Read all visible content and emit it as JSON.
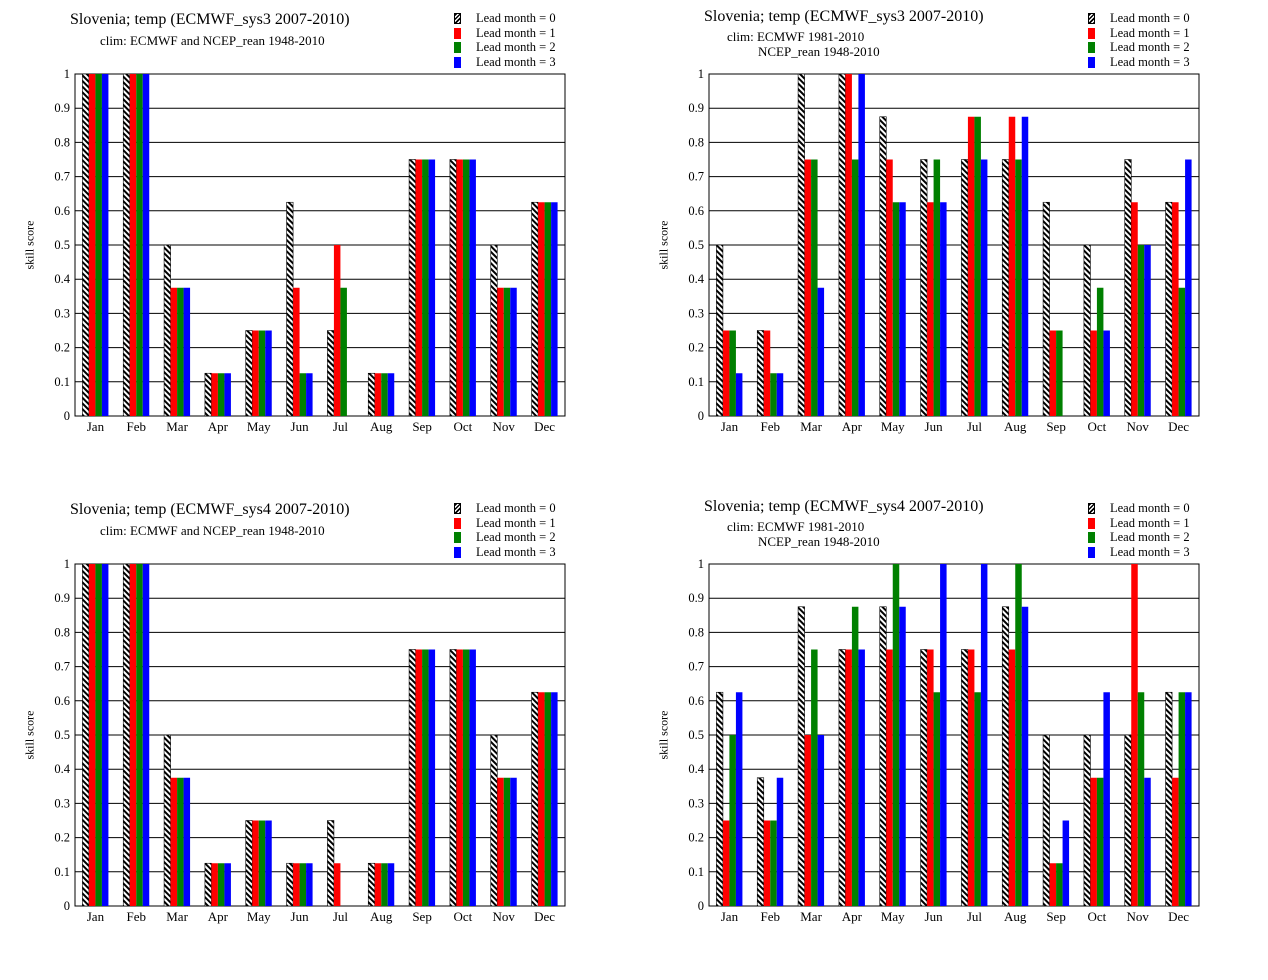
{
  "colors": {
    "lead0": "hatched-black-white",
    "lead1": "#ff0000",
    "lead2": "#008000",
    "lead3": "#0000ff",
    "grid": "#000000"
  },
  "chart_data": [
    {
      "type": "bar",
      "title": "Slovenia; temp (ECMWF_sys3 2007-2010)",
      "clim": [
        "clim: ECMWF and NCEP_rean 1948-2010"
      ],
      "ylabel": "skill score",
      "xlabel": "",
      "ylim": [
        0,
        1
      ],
      "yticks": [
        "0",
        "0.1",
        "0.2",
        "0.3",
        "0.4",
        "0.5",
        "0.6",
        "0.7",
        "0.8",
        "0.9",
        "1"
      ],
      "grid": true,
      "legend_position": "top-right",
      "categories": [
        "Jan",
        "Feb",
        "Mar",
        "Apr",
        "May",
        "Jun",
        "Jul",
        "Aug",
        "Sep",
        "Oct",
        "Nov",
        "Dec"
      ],
      "series": [
        {
          "name": "Lead month = 0",
          "values": [
            1,
            1,
            0.5,
            0.125,
            0.25,
            0.625,
            0.25,
            0.125,
            0.75,
            0.75,
            0.5,
            0.625
          ]
        },
        {
          "name": "Lead month = 1",
          "values": [
            1,
            1,
            0.375,
            0.125,
            0.25,
            0.375,
            0.5,
            0.125,
            0.75,
            0.75,
            0.375,
            0.625
          ]
        },
        {
          "name": "Lead month = 2",
          "values": [
            1,
            1,
            0.375,
            0.125,
            0.25,
            0.125,
            0.375,
            0.125,
            0.75,
            0.75,
            0.375,
            0.625
          ]
        },
        {
          "name": "Lead month = 3",
          "values": [
            1,
            1,
            0.375,
            0.125,
            0.25,
            0.125,
            0,
            0.125,
            0.75,
            0.75,
            0.375,
            0.625
          ]
        }
      ]
    },
    {
      "type": "bar",
      "title": "Slovenia; temp (ECMWF_sys3 2007-2010)",
      "clim": [
        "clim: ECMWF 1981-2010",
        "NCEP_rean 1948-2010"
      ],
      "ylabel": "skill score",
      "xlabel": "",
      "ylim": [
        0,
        1
      ],
      "yticks": [
        "0",
        "0.1",
        "0.2",
        "0.3",
        "0.4",
        "0.5",
        "0.6",
        "0.7",
        "0.8",
        "0.9",
        "1"
      ],
      "grid": true,
      "legend_position": "top-right",
      "categories": [
        "Jan",
        "Feb",
        "Mar",
        "Apr",
        "May",
        "Jun",
        "Jul",
        "Aug",
        "Sep",
        "Oct",
        "Nov",
        "Dec"
      ],
      "series": [
        {
          "name": "Lead month = 0",
          "values": [
            0.5,
            0.25,
            1,
            1,
            0.875,
            0.75,
            0.75,
            0.75,
            0.625,
            0.5,
            0.75,
            0.625
          ]
        },
        {
          "name": "Lead month = 1",
          "values": [
            0.25,
            0.25,
            0.75,
            1,
            0.75,
            0.625,
            0.875,
            0.875,
            0.25,
            0.25,
            0.625,
            0.625
          ]
        },
        {
          "name": "Lead month = 2",
          "values": [
            0.25,
            0.125,
            0.75,
            0.75,
            0.625,
            0.75,
            0.875,
            0.75,
            0.25,
            0.375,
            0.5,
            0.375
          ]
        },
        {
          "name": "Lead month = 3",
          "values": [
            0.125,
            0.125,
            0.375,
            1,
            0.625,
            0.625,
            0.75,
            0.875,
            0,
            0.25,
            0.5,
            0.75
          ]
        }
      ]
    },
    {
      "type": "bar",
      "title": "Slovenia; temp (ECMWF_sys4 2007-2010)",
      "clim": [
        "clim: ECMWF and NCEP_rean 1948-2010"
      ],
      "ylabel": "skill score",
      "xlabel": "",
      "ylim": [
        0,
        1
      ],
      "yticks": [
        "0",
        "0.1",
        "0.2",
        "0.3",
        "0.4",
        "0.5",
        "0.6",
        "0.7",
        "0.8",
        "0.9",
        "1"
      ],
      "grid": true,
      "legend_position": "top-right",
      "categories": [
        "Jan",
        "Feb",
        "Mar",
        "Apr",
        "May",
        "Jun",
        "Jul",
        "Aug",
        "Sep",
        "Oct",
        "Nov",
        "Dec"
      ],
      "series": [
        {
          "name": "Lead month = 0",
          "values": [
            1,
            1,
            0.5,
            0.125,
            0.25,
            0.125,
            0.25,
            0.125,
            0.75,
            0.75,
            0.5,
            0.625
          ]
        },
        {
          "name": "Lead month = 1",
          "values": [
            1,
            1,
            0.375,
            0.125,
            0.25,
            0.125,
            0.125,
            0.125,
            0.75,
            0.75,
            0.375,
            0.625
          ]
        },
        {
          "name": "Lead month = 2",
          "values": [
            1,
            1,
            0.375,
            0.125,
            0.25,
            0.125,
            0,
            0.125,
            0.75,
            0.75,
            0.375,
            0.625
          ]
        },
        {
          "name": "Lead month = 3",
          "values": [
            1,
            1,
            0.375,
            0.125,
            0.25,
            0.125,
            0,
            0.125,
            0.75,
            0.75,
            0.375,
            0.625
          ]
        }
      ]
    },
    {
      "type": "bar",
      "title": "Slovenia; temp (ECMWF_sys4 2007-2010)",
      "clim": [
        "clim: ECMWF 1981-2010",
        "NCEP_rean 1948-2010"
      ],
      "ylabel": "skill score",
      "xlabel": "",
      "ylim": [
        0,
        1
      ],
      "yticks": [
        "0",
        "0.1",
        "0.2",
        "0.3",
        "0.4",
        "0.5",
        "0.6",
        "0.7",
        "0.8",
        "0.9",
        "1"
      ],
      "grid": true,
      "legend_position": "top-right",
      "categories": [
        "Jan",
        "Feb",
        "Mar",
        "Apr",
        "May",
        "Jun",
        "Jul",
        "Aug",
        "Sep",
        "Oct",
        "Nov",
        "Dec"
      ],
      "series": [
        {
          "name": "Lead month = 0",
          "values": [
            0.625,
            0.375,
            0.875,
            0.75,
            0.875,
            0.75,
            0.75,
            0.875,
            0.5,
            0.5,
            0.5,
            0.625
          ]
        },
        {
          "name": "Lead month = 1",
          "values": [
            0.25,
            0.25,
            0.5,
            0.75,
            0.75,
            0.75,
            0.75,
            0.75,
            0.125,
            0.375,
            1,
            0.375
          ]
        },
        {
          "name": "Lead month = 2",
          "values": [
            0.5,
            0.25,
            0.75,
            0.875,
            1,
            0.625,
            0.625,
            1,
            0.125,
            0.375,
            0.625,
            0.625
          ]
        },
        {
          "name": "Lead month = 3",
          "values": [
            0.625,
            0.375,
            0.5,
            0.75,
            0.875,
            1,
            1,
            0.875,
            0.25,
            0.625,
            0.375,
            0.625
          ]
        }
      ]
    }
  ]
}
